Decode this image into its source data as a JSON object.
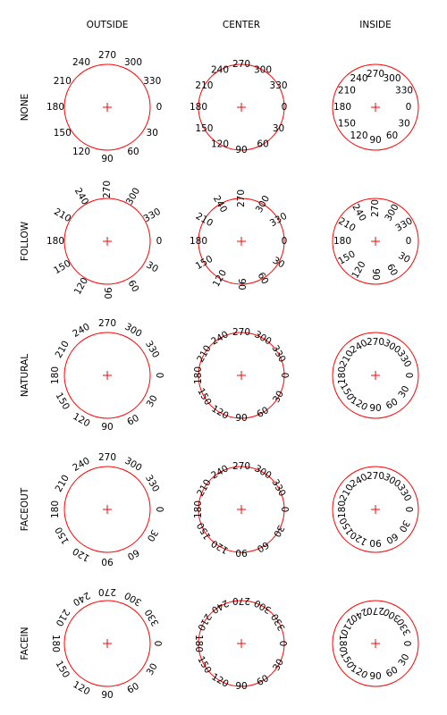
{
  "columns": [
    "OUTSIDE",
    "CENTER",
    "INSIDE"
  ],
  "rows": [
    "NONE",
    "FOLLOW",
    "NATURAL",
    "FACEOUT",
    "FACEIN"
  ],
  "angle_labels": [
    "0",
    "30",
    "60",
    "90",
    "120",
    "150",
    "180",
    "210",
    "240",
    "270",
    "300",
    "330"
  ],
  "angles_deg": [
    0,
    30,
    60,
    90,
    120,
    150,
    180,
    210,
    240,
    270,
    300,
    330
  ],
  "colors": {
    "circle": "#ff0000",
    "center_mark": "#ff0000",
    "text": "#000000"
  }
}
